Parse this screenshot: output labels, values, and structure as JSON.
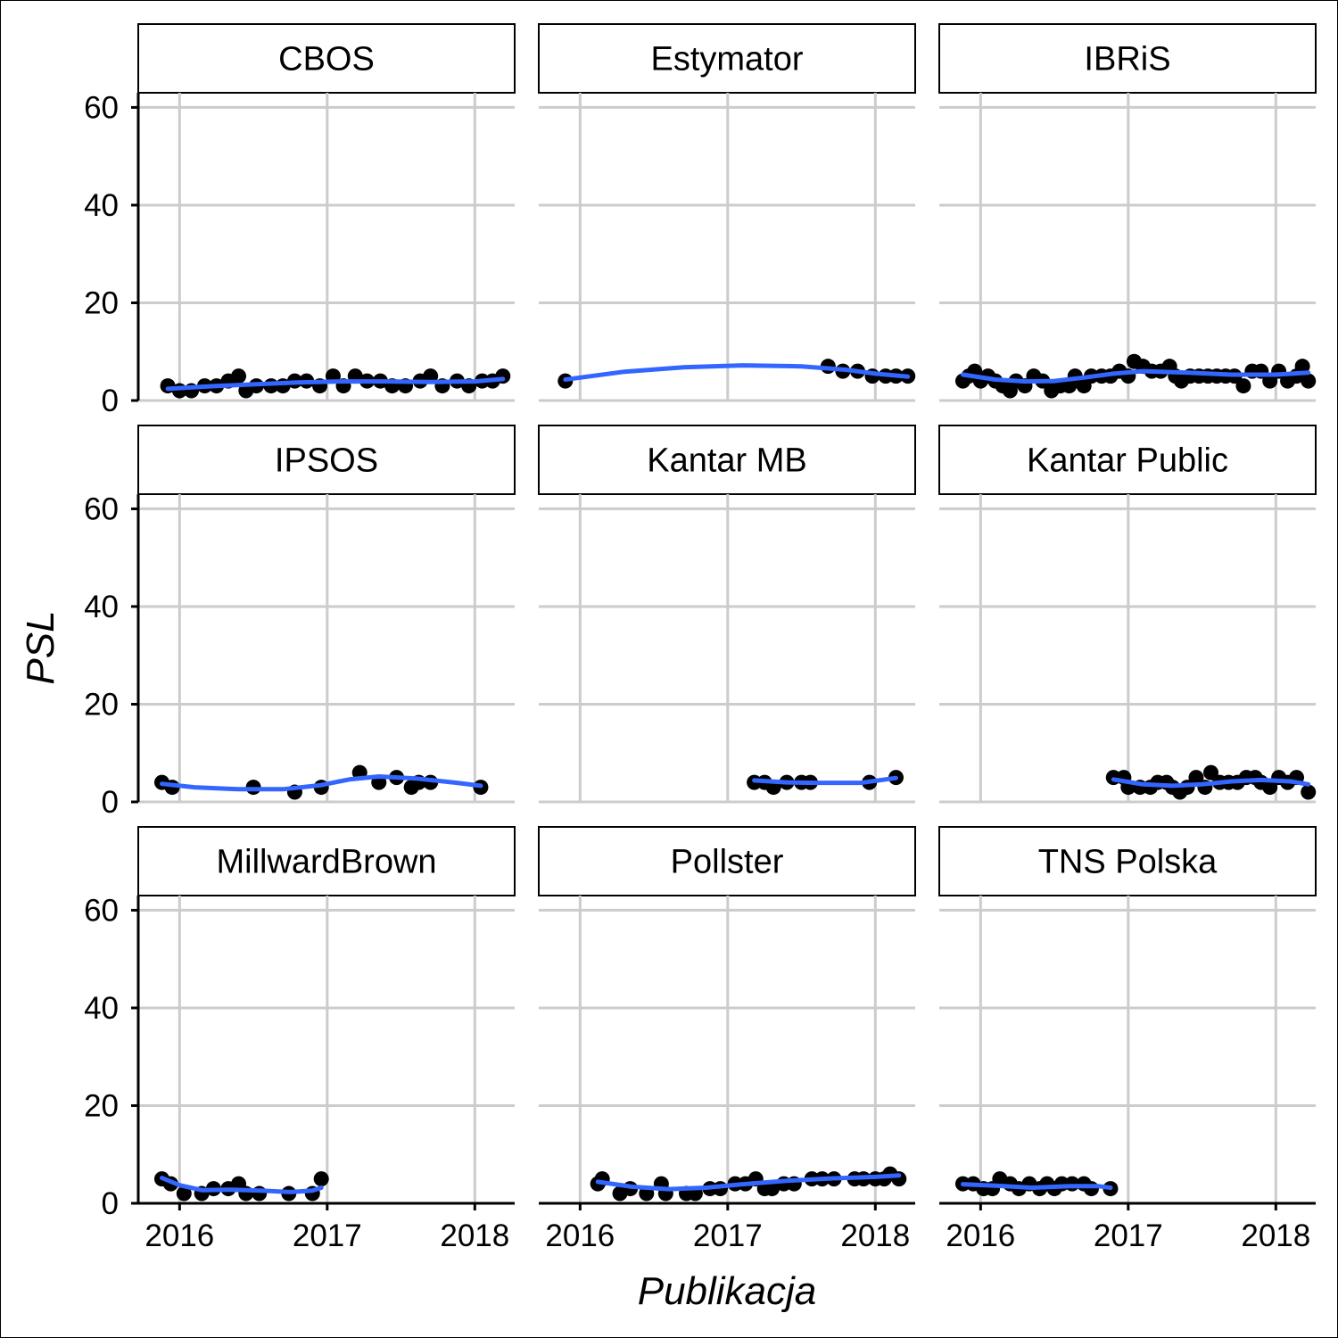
{
  "chart_data": {
    "type": "scatter",
    "ylabel": "PSL",
    "xlabel": "Publikacja",
    "xlim": [
      2015.72,
      2018.27
    ],
    "ylim": [
      0,
      63
    ],
    "x_ticks": [
      2016,
      2017,
      2018
    ],
    "y_ticks": [
      0,
      20,
      40,
      60
    ],
    "grid": true,
    "colors": {
      "points": "#000000",
      "smooth": "#3366FF",
      "grid": "#cccccc"
    },
    "panels": [
      {
        "label": "CBOS",
        "points": [
          [
            2015.92,
            3
          ],
          [
            2016.0,
            2
          ],
          [
            2016.08,
            2
          ],
          [
            2016.17,
            3
          ],
          [
            2016.25,
            3
          ],
          [
            2016.33,
            4
          ],
          [
            2016.4,
            5
          ],
          [
            2016.45,
            2
          ],
          [
            2016.52,
            3
          ],
          [
            2016.62,
            3
          ],
          [
            2016.7,
            3
          ],
          [
            2016.78,
            4
          ],
          [
            2016.86,
            4
          ],
          [
            2016.95,
            3
          ],
          [
            2017.04,
            5
          ],
          [
            2017.11,
            3
          ],
          [
            2017.19,
            5
          ],
          [
            2017.27,
            4
          ],
          [
            2017.36,
            4
          ],
          [
            2017.44,
            3
          ],
          [
            2017.53,
            3
          ],
          [
            2017.63,
            4
          ],
          [
            2017.7,
            5
          ],
          [
            2017.78,
            3
          ],
          [
            2017.88,
            4
          ],
          [
            2017.96,
            3
          ],
          [
            2018.05,
            4
          ],
          [
            2018.12,
            4
          ],
          [
            2018.19,
            5
          ]
        ],
        "smooth": [
          [
            2015.92,
            2.4
          ],
          [
            2016.2,
            2.9
          ],
          [
            2016.5,
            3.3
          ],
          [
            2016.8,
            3.7
          ],
          [
            2017.1,
            3.9
          ],
          [
            2017.4,
            3.9
          ],
          [
            2017.7,
            3.8
          ],
          [
            2018.0,
            3.9
          ],
          [
            2018.19,
            4.4
          ]
        ]
      },
      {
        "label": "Estymator",
        "points": [
          [
            2015.9,
            4
          ],
          [
            2017.68,
            7
          ],
          [
            2017.78,
            6
          ],
          [
            2017.88,
            6
          ],
          [
            2017.98,
            5
          ],
          [
            2018.07,
            5
          ],
          [
            2018.14,
            5
          ],
          [
            2018.22,
            5
          ]
        ],
        "smooth": [
          [
            2015.9,
            4.3
          ],
          [
            2016.3,
            5.9
          ],
          [
            2016.7,
            6.8
          ],
          [
            2017.1,
            7.2
          ],
          [
            2017.5,
            7.0
          ],
          [
            2017.8,
            6.3
          ],
          [
            2018.0,
            5.5
          ],
          [
            2018.22,
            4.9
          ]
        ]
      },
      {
        "label": "IBRiS",
        "points": [
          [
            2015.88,
            4
          ],
          [
            2015.92,
            5
          ],
          [
            2015.96,
            6
          ],
          [
            2016.0,
            4
          ],
          [
            2016.05,
            5
          ],
          [
            2016.1,
            4
          ],
          [
            2016.15,
            3
          ],
          [
            2016.2,
            2
          ],
          [
            2016.24,
            4
          ],
          [
            2016.3,
            3
          ],
          [
            2016.36,
            5
          ],
          [
            2016.42,
            4
          ],
          [
            2016.48,
            2
          ],
          [
            2016.54,
            3
          ],
          [
            2016.6,
            3
          ],
          [
            2016.64,
            5
          ],
          [
            2016.7,
            3
          ],
          [
            2016.75,
            5
          ],
          [
            2016.82,
            5
          ],
          [
            2016.88,
            5
          ],
          [
            2016.94,
            6
          ],
          [
            2017.0,
            5
          ],
          [
            2017.04,
            8
          ],
          [
            2017.1,
            7
          ],
          [
            2017.16,
            6
          ],
          [
            2017.22,
            6
          ],
          [
            2017.28,
            7
          ],
          [
            2017.32,
            5
          ],
          [
            2017.36,
            4
          ],
          [
            2017.42,
            5
          ],
          [
            2017.48,
            5
          ],
          [
            2017.54,
            5
          ],
          [
            2017.6,
            5
          ],
          [
            2017.66,
            5
          ],
          [
            2017.72,
            5
          ],
          [
            2017.78,
            3
          ],
          [
            2017.84,
            6
          ],
          [
            2017.9,
            6
          ],
          [
            2017.96,
            4
          ],
          [
            2018.02,
            6
          ],
          [
            2018.08,
            4
          ],
          [
            2018.14,
            5
          ],
          [
            2018.18,
            7
          ],
          [
            2018.22,
            4
          ]
        ],
        "smooth": [
          [
            2015.88,
            5.3
          ],
          [
            2016.1,
            4.3
          ],
          [
            2016.3,
            3.9
          ],
          [
            2016.5,
            4.0
          ],
          [
            2016.7,
            4.7
          ],
          [
            2016.9,
            5.5
          ],
          [
            2017.1,
            6.0
          ],
          [
            2017.4,
            5.7
          ],
          [
            2017.7,
            5.3
          ],
          [
            2018.0,
            5.3
          ],
          [
            2018.22,
            5.7
          ]
        ]
      },
      {
        "label": "IPSOS",
        "points": [
          [
            2015.88,
            4
          ],
          [
            2015.95,
            3
          ],
          [
            2016.5,
            3
          ],
          [
            2016.78,
            2
          ],
          [
            2016.96,
            3
          ],
          [
            2017.22,
            6
          ],
          [
            2017.35,
            4
          ],
          [
            2017.47,
            5
          ],
          [
            2017.57,
            3
          ],
          [
            2017.62,
            4
          ],
          [
            2017.7,
            4
          ],
          [
            2018.04,
            3
          ]
        ],
        "smooth": [
          [
            2015.88,
            3.7
          ],
          [
            2016.1,
            3.0
          ],
          [
            2016.4,
            2.6
          ],
          [
            2016.7,
            2.6
          ],
          [
            2016.95,
            3.4
          ],
          [
            2017.15,
            4.6
          ],
          [
            2017.35,
            5.2
          ],
          [
            2017.6,
            4.8
          ],
          [
            2017.85,
            4.0
          ],
          [
            2018.04,
            3.3
          ]
        ]
      },
      {
        "label": "Kantar MB",
        "points": [
          [
            2017.18,
            4
          ],
          [
            2017.25,
            4
          ],
          [
            2017.31,
            3
          ],
          [
            2017.4,
            4
          ],
          [
            2017.5,
            4
          ],
          [
            2017.56,
            4
          ],
          [
            2017.96,
            4
          ],
          [
            2018.14,
            5
          ]
        ],
        "smooth": [
          [
            2017.18,
            4.4
          ],
          [
            2017.4,
            4.0
          ],
          [
            2017.6,
            3.9
          ],
          [
            2017.9,
            3.9
          ],
          [
            2018.14,
            4.9
          ]
        ]
      },
      {
        "label": "Kantar Public",
        "points": [
          [
            2016.9,
            5
          ],
          [
            2016.97,
            5
          ],
          [
            2017.0,
            3
          ],
          [
            2017.08,
            3
          ],
          [
            2017.15,
            3
          ],
          [
            2017.2,
            4
          ],
          [
            2017.26,
            4
          ],
          [
            2017.3,
            3
          ],
          [
            2017.35,
            2
          ],
          [
            2017.4,
            3
          ],
          [
            2017.46,
            5
          ],
          [
            2017.52,
            3
          ],
          [
            2017.56,
            6
          ],
          [
            2017.62,
            4
          ],
          [
            2017.68,
            4
          ],
          [
            2017.74,
            4
          ],
          [
            2017.8,
            5
          ],
          [
            2017.86,
            5
          ],
          [
            2017.9,
            4
          ],
          [
            2017.96,
            3
          ],
          [
            2018.02,
            5
          ],
          [
            2018.08,
            4
          ],
          [
            2018.14,
            5
          ],
          [
            2018.22,
            2
          ]
        ],
        "smooth": [
          [
            2016.9,
            4.6
          ],
          [
            2017.1,
            3.6
          ],
          [
            2017.3,
            3.3
          ],
          [
            2017.5,
            3.6
          ],
          [
            2017.7,
            4.2
          ],
          [
            2017.9,
            4.5
          ],
          [
            2018.1,
            4.2
          ],
          [
            2018.22,
            3.6
          ]
        ]
      },
      {
        "label": "MillwardBrown",
        "points": [
          [
            2015.88,
            5
          ],
          [
            2015.94,
            4
          ],
          [
            2016.03,
            2
          ],
          [
            2016.15,
            2
          ],
          [
            2016.23,
            3
          ],
          [
            2016.33,
            3
          ],
          [
            2016.4,
            4
          ],
          [
            2016.45,
            2
          ],
          [
            2016.54,
            2
          ],
          [
            2016.74,
            2
          ],
          [
            2016.9,
            2
          ],
          [
            2016.96,
            5
          ]
        ],
        "smooth": [
          [
            2015.88,
            5.2
          ],
          [
            2016.0,
            3.7
          ],
          [
            2016.15,
            2.7
          ],
          [
            2016.35,
            2.8
          ],
          [
            2016.55,
            2.6
          ],
          [
            2016.75,
            2.3
          ],
          [
            2016.9,
            2.6
          ],
          [
            2016.96,
            3.2
          ]
        ]
      },
      {
        "label": "Pollster",
        "points": [
          [
            2016.12,
            4
          ],
          [
            2016.15,
            5
          ],
          [
            2016.27,
            2
          ],
          [
            2016.34,
            3
          ],
          [
            2016.45,
            2
          ],
          [
            2016.55,
            4
          ],
          [
            2016.58,
            2
          ],
          [
            2016.72,
            2
          ],
          [
            2016.78,
            2
          ],
          [
            2016.88,
            3
          ],
          [
            2016.95,
            3
          ],
          [
            2017.05,
            4
          ],
          [
            2017.12,
            4
          ],
          [
            2017.19,
            5
          ],
          [
            2017.25,
            3
          ],
          [
            2017.3,
            3
          ],
          [
            2017.38,
            4
          ],
          [
            2017.45,
            4
          ],
          [
            2017.57,
            5
          ],
          [
            2017.64,
            5
          ],
          [
            2017.72,
            5
          ],
          [
            2017.86,
            5
          ],
          [
            2017.92,
            5
          ],
          [
            2018.0,
            5
          ],
          [
            2018.06,
            5
          ],
          [
            2018.1,
            6
          ],
          [
            2018.16,
            5
          ]
        ],
        "smooth": [
          [
            2016.12,
            4.4
          ],
          [
            2016.35,
            3.4
          ],
          [
            2016.6,
            2.9
          ],
          [
            2016.85,
            3.2
          ],
          [
            2017.1,
            3.9
          ],
          [
            2017.4,
            4.6
          ],
          [
            2017.7,
            5.1
          ],
          [
            2018.0,
            5.4
          ],
          [
            2018.16,
            5.7
          ]
        ]
      },
      {
        "label": "TNS Polska",
        "points": [
          [
            2015.88,
            4
          ],
          [
            2015.95,
            4
          ],
          [
            2016.02,
            3
          ],
          [
            2016.08,
            3
          ],
          [
            2016.13,
            5
          ],
          [
            2016.2,
            4
          ],
          [
            2016.26,
            3
          ],
          [
            2016.33,
            4
          ],
          [
            2016.4,
            3
          ],
          [
            2016.45,
            4
          ],
          [
            2016.5,
            3
          ],
          [
            2016.55,
            4
          ],
          [
            2016.62,
            4
          ],
          [
            2016.7,
            4
          ],
          [
            2016.75,
            3
          ],
          [
            2016.88,
            3
          ]
        ],
        "smooth": [
          [
            2015.88,
            3.9
          ],
          [
            2016.1,
            3.6
          ],
          [
            2016.35,
            3.2
          ],
          [
            2016.6,
            3.5
          ],
          [
            2016.8,
            3.5
          ],
          [
            2016.88,
            3.2
          ]
        ]
      }
    ]
  }
}
